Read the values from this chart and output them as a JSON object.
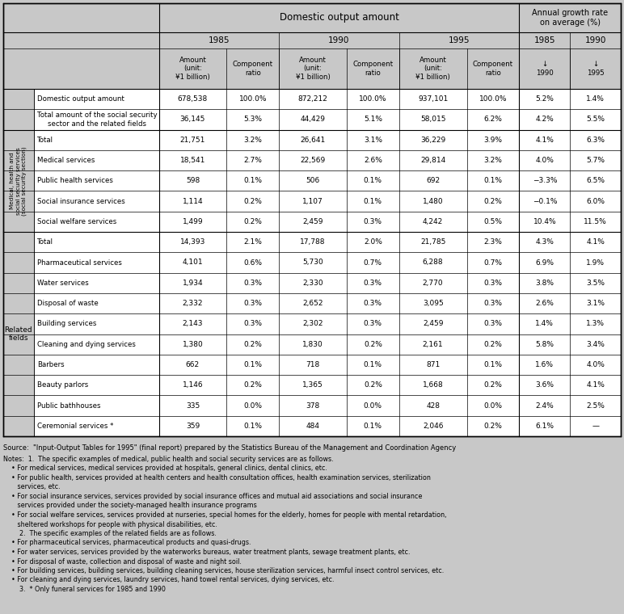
{
  "bg_color": "#c8c8c8",
  "cell_bg": "#ffffff",
  "rows": [
    {
      "label1": "",
      "label2": "Domestic output amount",
      "v1": "678,538",
      "v2": "100.0%",
      "v3": "872,212",
      "v4": "100.0%",
      "v5": "937,101",
      "v6": "100.0%",
      "v7": "5.2%",
      "v8": "1.4%",
      "group": "none"
    },
    {
      "label1": "",
      "label2": "Total amount of the social security\nsector and the related fields",
      "v1": "36,145",
      "v2": "5.3%",
      "v3": "44,429",
      "v4": "5.1%",
      "v5": "58,015",
      "v6": "6.2%",
      "v7": "4.2%",
      "v8": "5.5%",
      "group": "none"
    },
    {
      "label1": "Medical, health and\nsocial security services\n(social security section)",
      "label2": "Total",
      "v1": "21,751",
      "v2": "3.2%",
      "v3": "26,641",
      "v4": "3.1%",
      "v5": "36,229",
      "v6": "3.9%",
      "v7": "4.1%",
      "v8": "6.3%",
      "group": "medical"
    },
    {
      "label1": "",
      "label2": "Medical services",
      "v1": "18,541",
      "v2": "2.7%",
      "v3": "22,569",
      "v4": "2.6%",
      "v5": "29,814",
      "v6": "3.2%",
      "v7": "4.0%",
      "v8": "5.7%",
      "group": "medical"
    },
    {
      "label1": "",
      "label2": "Public health services",
      "v1": "598",
      "v2": "0.1%",
      "v3": "506",
      "v4": "0.1%",
      "v5": "692",
      "v6": "0.1%",
      "v7": "−3.3%",
      "v8": "6.5%",
      "group": "medical"
    },
    {
      "label1": "",
      "label2": "Social insurance services",
      "v1": "1,114",
      "v2": "0.2%",
      "v3": "1,107",
      "v4": "0.1%",
      "v5": "1,480",
      "v6": "0.2%",
      "v7": "−0.1%",
      "v8": "6.0%",
      "group": "medical"
    },
    {
      "label1": "",
      "label2": "Social welfare services",
      "v1": "1,499",
      "v2": "0.2%",
      "v3": "2,459",
      "v4": "0.3%",
      "v5": "4,242",
      "v6": "0.5%",
      "v7": "10.4%",
      "v8": "11.5%",
      "group": "medical"
    },
    {
      "label1": "Related\nfields",
      "label2": "Total",
      "v1": "14,393",
      "v2": "2.1%",
      "v3": "17,788",
      "v4": "2.0%",
      "v5": "21,785",
      "v6": "2.3%",
      "v7": "4.3%",
      "v8": "4.1%",
      "group": "related"
    },
    {
      "label1": "",
      "label2": "Pharmaceutical services",
      "v1": "4,101",
      "v2": "0.6%",
      "v3": "5,730",
      "v4": "0.7%",
      "v5": "6,288",
      "v6": "0.7%",
      "v7": "6.9%",
      "v8": "1.9%",
      "group": "related"
    },
    {
      "label1": "",
      "label2": "Water services",
      "v1": "1,934",
      "v2": "0.3%",
      "v3": "2,330",
      "v4": "0.3%",
      "v5": "2,770",
      "v6": "0.3%",
      "v7": "3.8%",
      "v8": "3.5%",
      "group": "related"
    },
    {
      "label1": "",
      "label2": "Disposal of waste",
      "v1": "2,332",
      "v2": "0.3%",
      "v3": "2,652",
      "v4": "0.3%",
      "v5": "3,095",
      "v6": "0.3%",
      "v7": "2.6%",
      "v8": "3.1%",
      "group": "related"
    },
    {
      "label1": "",
      "label2": "Building services",
      "v1": "2,143",
      "v2": "0.3%",
      "v3": "2,302",
      "v4": "0.3%",
      "v5": "2,459",
      "v6": "0.3%",
      "v7": "1.4%",
      "v8": "1.3%",
      "group": "related"
    },
    {
      "label1": "",
      "label2": "Cleaning and dying services",
      "v1": "1,380",
      "v2": "0.2%",
      "v3": "1,830",
      "v4": "0.2%",
      "v5": "2,161",
      "v6": "0.2%",
      "v7": "5.8%",
      "v8": "3.4%",
      "group": "related"
    },
    {
      "label1": "",
      "label2": "Barbers",
      "v1": "662",
      "v2": "0.1%",
      "v3": "718",
      "v4": "0.1%",
      "v5": "871",
      "v6": "0.1%",
      "v7": "1.6%",
      "v8": "4.0%",
      "group": "related"
    },
    {
      "label1": "",
      "label2": "Beauty parlors",
      "v1": "1,146",
      "v2": "0.2%",
      "v3": "1,365",
      "v4": "0.2%",
      "v5": "1,668",
      "v6": "0.2%",
      "v7": "3.6%",
      "v8": "4.1%",
      "group": "related"
    },
    {
      "label1": "",
      "label2": "Public bathhouses",
      "v1": "335",
      "v2": "0.0%",
      "v3": "378",
      "v4": "0.0%",
      "v5": "428",
      "v6": "0.0%",
      "v7": "2.4%",
      "v8": "2.5%",
      "group": "related"
    },
    {
      "label1": "",
      "label2": "Ceremonial services *",
      "v1": "359",
      "v2": "0.1%",
      "v3": "484",
      "v4": "0.1%",
      "v5": "2,046",
      "v6": "0.2%",
      "v7": "6.1%",
      "v8": "—",
      "group": "related"
    }
  ],
  "source_line": "Source:  \"Input-Output Tables for 1995\" (final report) prepared by the Statistics Bureau of the Management and Coordination Agency",
  "note_lines": [
    "Notes:  1.  The specific examples of medical, public health and social security services are as follows.",
    "    • For medical services, medical services provided at hospitals, general clinics, dental clinics, etc.",
    "    • For public health, services provided at health centers and health consultation offices, health examination services, sterilization",
    "       services, etc.",
    "    • For social insurance services, services provided by social insurance offices and mutual aid associations and social insurance",
    "       services provided under the society-managed health insurance programs",
    "    • For social welfare services, services provided at nurseries, special homes for the elderly, homes for people with mental retardation,",
    "       sheltered workshops for people with physical disabilities, etc.",
    "        2.  The specific examples of the related fields are as follows.",
    "    • For pharmaceutical services, pharmaceutical products and quasi-drugs.",
    "    • For water services, services provided by the waterworks bureaus, water treatment plants, sewage treatment plants, etc.",
    "    • For disposal of waste, collection and disposal of waste and night soil.",
    "    • For building services, building services, building cleaning services, house sterilization services, harmful insect control services, etc.",
    "    • For cleaning and dying services, laundry services, hand towel rental services, dying services, etc.",
    "        3.  * Only funeral services for 1985 and 1990"
  ]
}
